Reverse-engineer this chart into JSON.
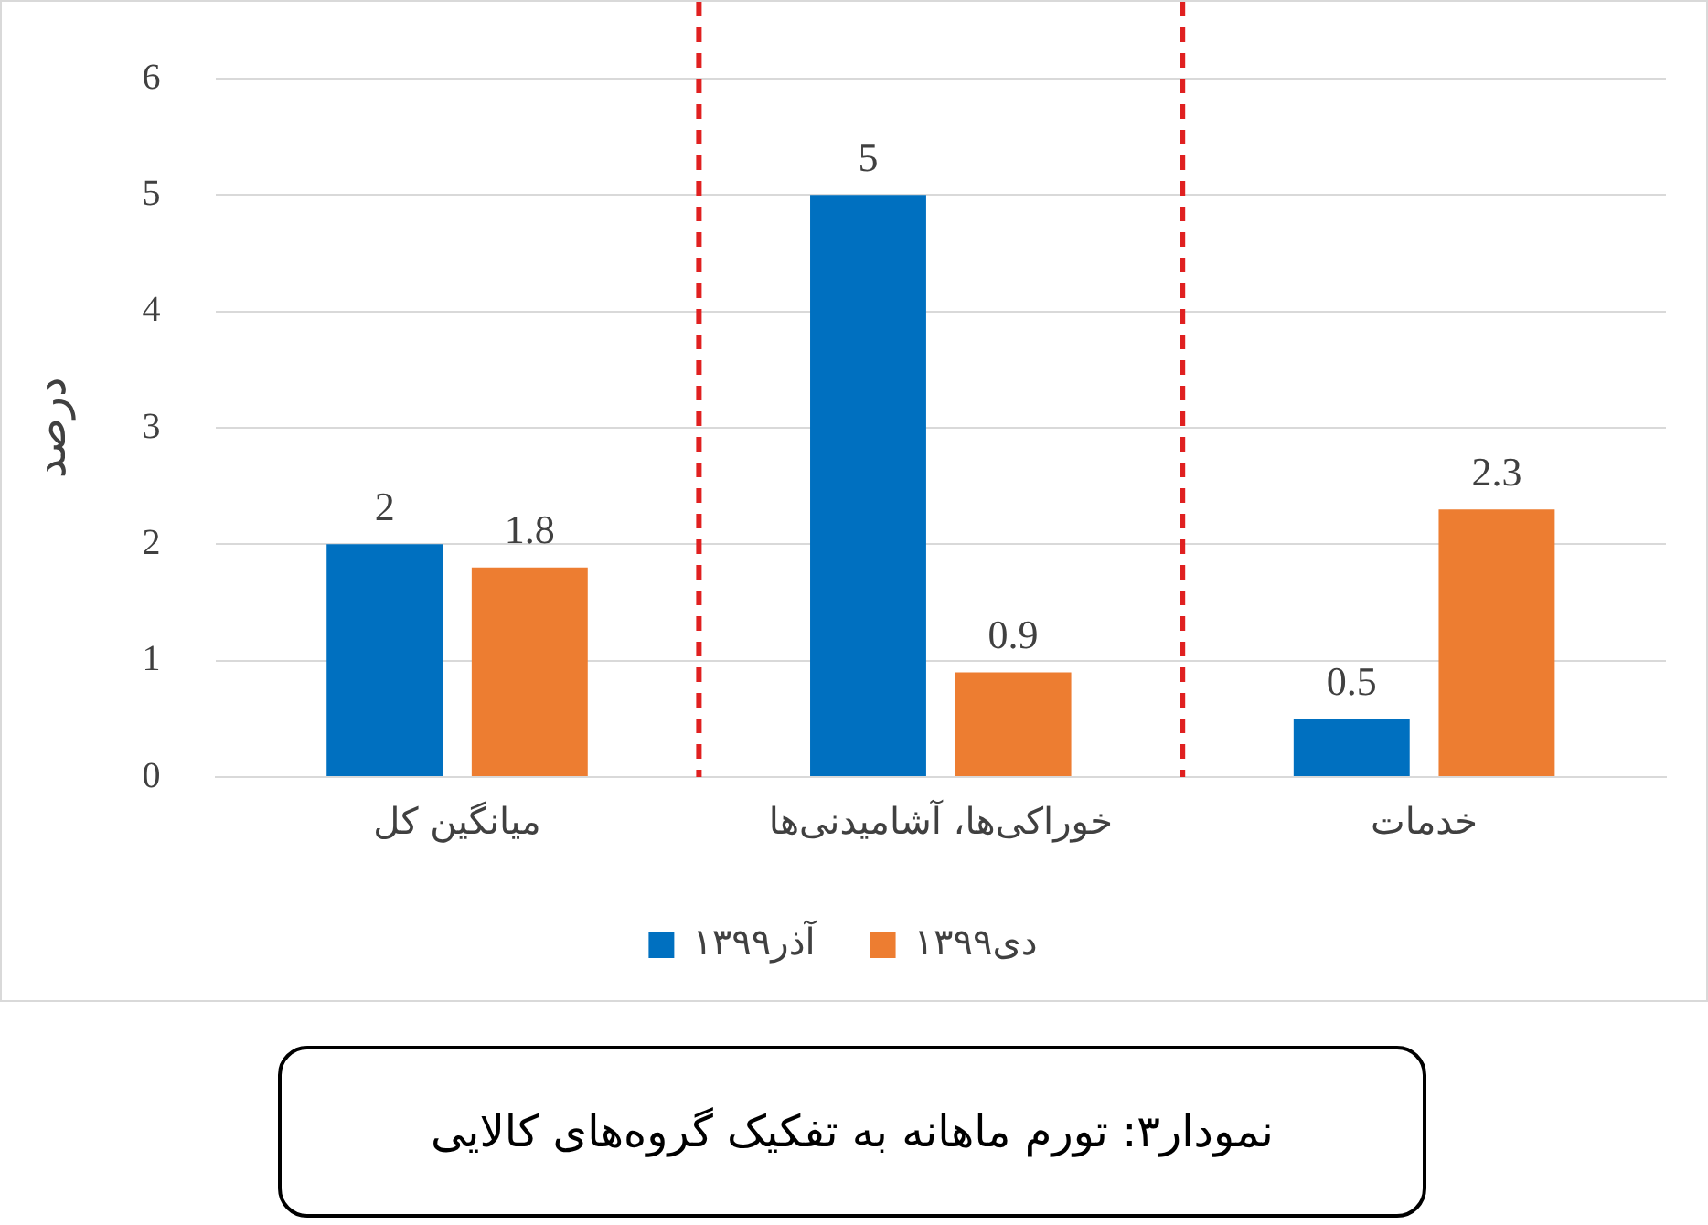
{
  "chart_data": {
    "type": "bar",
    "ylabel": "درصد",
    "categories": [
      "میانگین کل",
      "خوراکی‌ها، آشامیدنی‌ها",
      "خدمات"
    ],
    "series": [
      {
        "name": "آذر۱۳۹۹",
        "color": "#0070c0",
        "values": [
          2,
          5,
          0.5
        ]
      },
      {
        "name": "دی۱۳۹۹",
        "color": "#ed7d31",
        "values": [
          1.8,
          0.9,
          2.3
        ]
      }
    ],
    "ylim": [
      0,
      6
    ],
    "yticks": [
      0,
      1,
      2,
      3,
      4,
      5,
      6
    ],
    "grid": "y",
    "legend": "bottom",
    "data_labels": true,
    "annotations": [
      "نمودار۳: تورم ماهانه به تفکیک گروه‌های کالایی"
    ]
  }
}
